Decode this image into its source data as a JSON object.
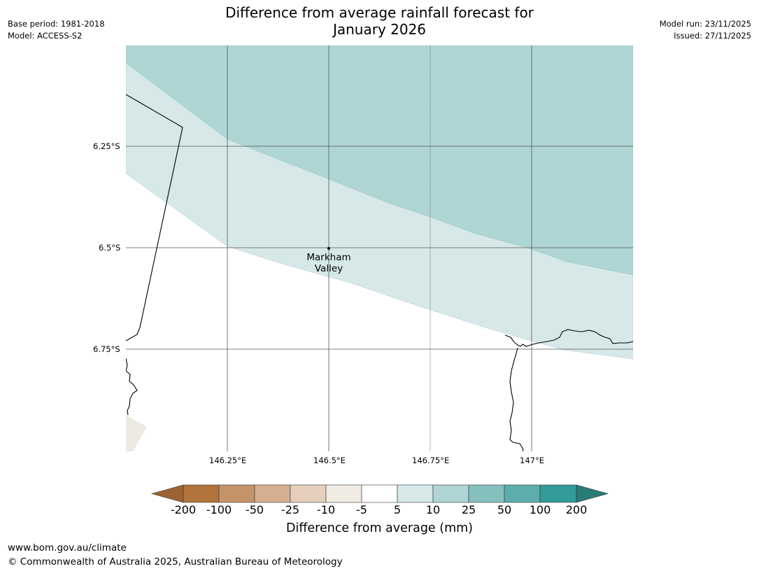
{
  "header": {
    "title_line1": "Difference from average rainfall forecast for",
    "title_line2": "January 2026",
    "base_period": "Base period: 1981-2018",
    "model": "Model: ACCESS-S2",
    "model_run": "Model run: 23/11/2025",
    "issued": "Issued: 27/11/2025"
  },
  "map": {
    "lat_labels": [
      "6.25°S",
      "6.5°S",
      "6.75°S"
    ],
    "lon_labels": [
      "146.25°E",
      "146.5°E",
      "146.75°E",
      "147°E"
    ],
    "place": {
      "line1": "Markham",
      "line2": "Valley"
    }
  },
  "colorbar": {
    "title": "Difference from average (mm)",
    "tick_labels": [
      "-200",
      "-100",
      "-50",
      "-25",
      "-10",
      "-5",
      "5",
      "10",
      "25",
      "50",
      "100",
      "200"
    ],
    "colors": [
      "#9c6230",
      "#b0743c",
      "#c4936a",
      "#d4b090",
      "#e4d0bc",
      "#f0ece4",
      "#ffffff",
      "#d6e9e8",
      "#afd5d5",
      "#86c0be",
      "#5eadad",
      "#339b99",
      "#2a7a77"
    ]
  },
  "footer": {
    "url": "www.bom.gov.au/climate",
    "copyright": "© Commonwealth of Australia 2025, Australian Bureau of Meteorology"
  }
}
